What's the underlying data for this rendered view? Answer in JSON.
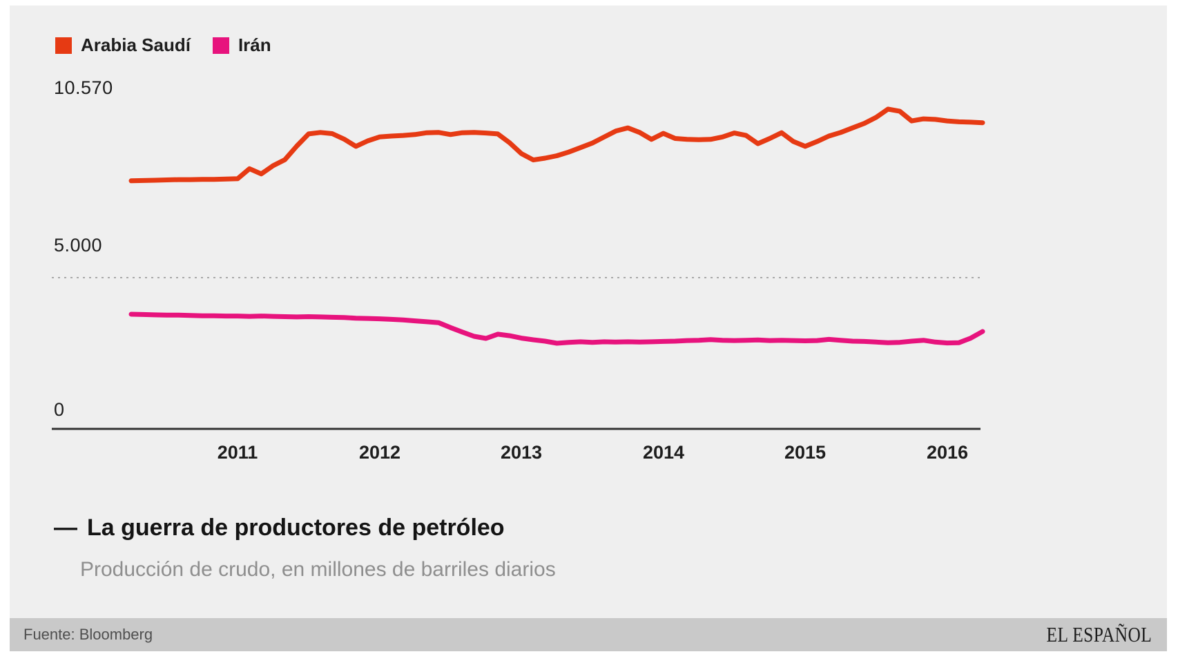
{
  "legend": [
    {
      "label": "Arabia Saudí",
      "color": "#e63a13"
    },
    {
      "label": "Irán",
      "color": "#e7137d"
    }
  ],
  "y_axis": {
    "labels": [
      "10.570",
      "5.000",
      "0"
    ]
  },
  "x_axis": {
    "labels": [
      "2011",
      "2012",
      "2013",
      "2014",
      "2015",
      "2016"
    ]
  },
  "title": {
    "dash": "—",
    "text": "La guerra de productores de petróleo"
  },
  "subtitle": "Producción de crudo, en millones de barriles diarios",
  "footer": {
    "source": "Fuente: Bloomberg",
    "brand": "EL ESPAÑOL"
  },
  "chart_data": {
    "type": "line",
    "frequency": "monthly",
    "x_start": "2010-04",
    "x_end": "2016-04",
    "x_tick_labels": [
      "2011",
      "2012",
      "2013",
      "2014",
      "2015",
      "2016"
    ],
    "unit": "miles de barriles diarios",
    "ylim": [
      0,
      11500
    ],
    "y_gridlines": [
      {
        "value": 5000,
        "label": "5.000",
        "style": "dotted"
      }
    ],
    "y_max_annotation": {
      "value": 10570,
      "label": "10.570"
    },
    "legend_position": "top-left",
    "colors": {
      "background": "#efefef",
      "axis": "#333333",
      "grid": "#a8a8a8"
    },
    "series": [
      {
        "name": "Arabia Saudí",
        "color": "#e63a13",
        "values": [
          8200,
          8210,
          8220,
          8230,
          8240,
          8240,
          8250,
          8250,
          8260,
          8270,
          8600,
          8430,
          8700,
          8900,
          9350,
          9750,
          9800,
          9760,
          9580,
          9340,
          9520,
          9650,
          9680,
          9700,
          9730,
          9790,
          9800,
          9730,
          9790,
          9800,
          9780,
          9750,
          9460,
          9100,
          8890,
          8950,
          9030,
          9150,
          9300,
          9450,
          9650,
          9850,
          9950,
          9800,
          9570,
          9770,
          9600,
          9570,
          9560,
          9570,
          9650,
          9780,
          9700,
          9430,
          9600,
          9790,
          9500,
          9340,
          9500,
          9680,
          9800,
          9950,
          10100,
          10300,
          10570,
          10500,
          10180,
          10250,
          10230,
          10180,
          10150,
          10140,
          10120
        ]
      },
      {
        "name": "Irán",
        "color": "#e7137d",
        "values": [
          3790,
          3780,
          3770,
          3760,
          3760,
          3750,
          3740,
          3740,
          3730,
          3730,
          3720,
          3730,
          3720,
          3710,
          3700,
          3710,
          3700,
          3690,
          3680,
          3660,
          3650,
          3640,
          3620,
          3600,
          3570,
          3540,
          3510,
          3350,
          3200,
          3060,
          2990,
          3130,
          3080,
          3000,
          2945,
          2900,
          2830,
          2860,
          2880,
          2860,
          2880,
          2870,
          2880,
          2870,
          2880,
          2890,
          2900,
          2920,
          2930,
          2950,
          2930,
          2920,
          2930,
          2940,
          2920,
          2930,
          2920,
          2910,
          2920,
          2960,
          2930,
          2900,
          2890,
          2870,
          2850,
          2860,
          2900,
          2930,
          2870,
          2840,
          2850,
          3000,
          3220
        ]
      }
    ]
  }
}
